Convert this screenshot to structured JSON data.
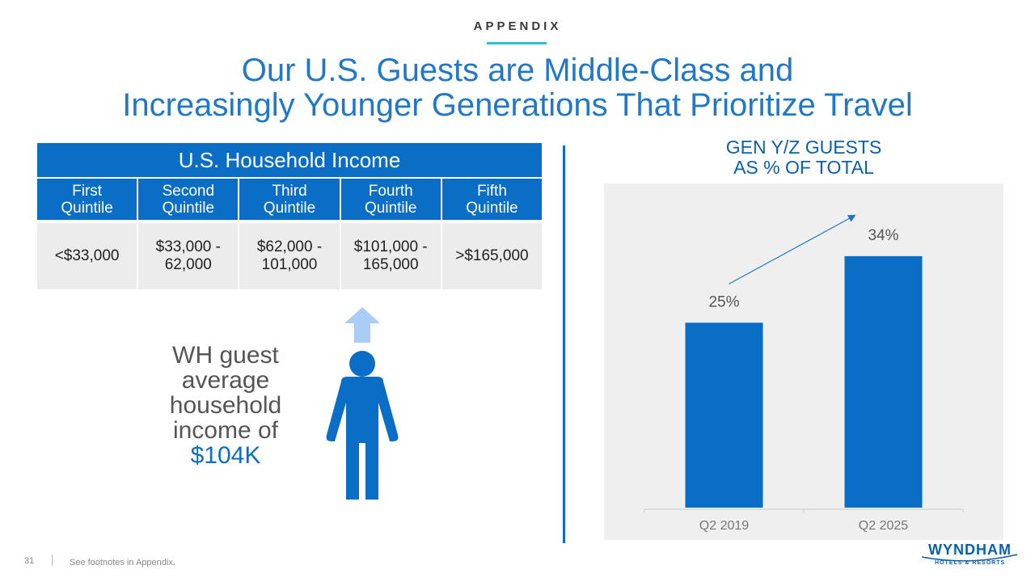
{
  "header": {
    "eyebrow": "APPENDIX",
    "title_line1": "Our U.S. Guests are Middle-Class and",
    "title_line2": "Increasingly Younger Generations That Prioritize Travel"
  },
  "income_table": {
    "title": "U.S. Household Income",
    "quintiles": [
      "First\nQuintile",
      "Second\nQuintile",
      "Third\nQuintile",
      "Fourth\nQuintile",
      "Fifth\nQuintile"
    ],
    "ranges": [
      "<$33,000",
      "$33,000 -\n62,000",
      "$62,000 -\n101,000",
      "$101,000 -\n165,000",
      ">$165,000"
    ]
  },
  "guest": {
    "line1": "WH guest",
    "line2": "average",
    "line3": "household",
    "line4": "income of",
    "highlight": "$104K"
  },
  "chart_data": {
    "type": "bar",
    "title": "GEN Y/Z GUESTS\nAS % OF TOTAL",
    "categories": [
      "Q2 2019",
      "Q2 2025"
    ],
    "values": [
      25,
      34
    ],
    "labels": [
      "25%",
      "34%"
    ],
    "unit": "%",
    "ylim": [
      0,
      40
    ],
    "grid": false,
    "bar_color": "#0a6ec6",
    "annotation": "arrow indicating increase"
  },
  "footer": {
    "page_number": "31",
    "note": "See footnotes in Appendix."
  },
  "logo": {
    "name": "WYNDHAM",
    "tagline": "HOTELS & RESORTS"
  },
  "colors": {
    "brand_blue": "#0a6ec6",
    "title_blue": "#1f78c8",
    "accent_teal": "#2cc3d0",
    "arrow_light": "#a9cdf5"
  }
}
